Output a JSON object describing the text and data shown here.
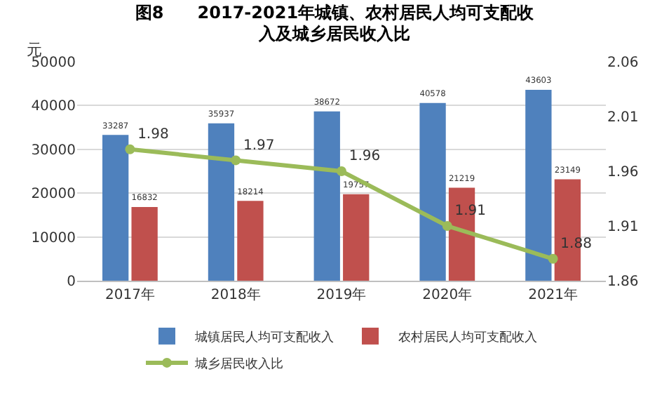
{
  "chart_data": {
    "type": "bar",
    "title": "图8　　2017-2021年城镇、农村居民人均可支配收入及城乡居民收入比",
    "ylabel": "元",
    "categories": [
      "2017年",
      "2018年",
      "2019年",
      "2020年",
      "2021年"
    ],
    "series": [
      {
        "name": "城镇居民人均可支配收入",
        "color": "#4f81bd",
        "values": [
          33287,
          35937,
          38672,
          40578,
          43603
        ]
      },
      {
        "name": "农村居民人均可支配收入",
        "color": "#c0504d",
        "values": [
          16832,
          18214,
          19757,
          21219,
          23149
        ]
      },
      {
        "name": "城乡居民收入比",
        "type": "line",
        "axis": "y2",
        "color": "#9bbb59",
        "marker": "circle",
        "line_style": "solid",
        "values": [
          1.98,
          1.97,
          1.96,
          1.91,
          1.88
        ]
      }
    ],
    "ylim": [
      0,
      50000
    ],
    "yticks": [
      0,
      10000,
      20000,
      30000,
      40000,
      50000
    ],
    "y2lim": [
      1.86,
      2.06
    ],
    "y2ticks": [
      1.86,
      1.91,
      1.96,
      2.01,
      2.06
    ],
    "grid": "y",
    "legend": "bottom",
    "data_labels": true
  }
}
